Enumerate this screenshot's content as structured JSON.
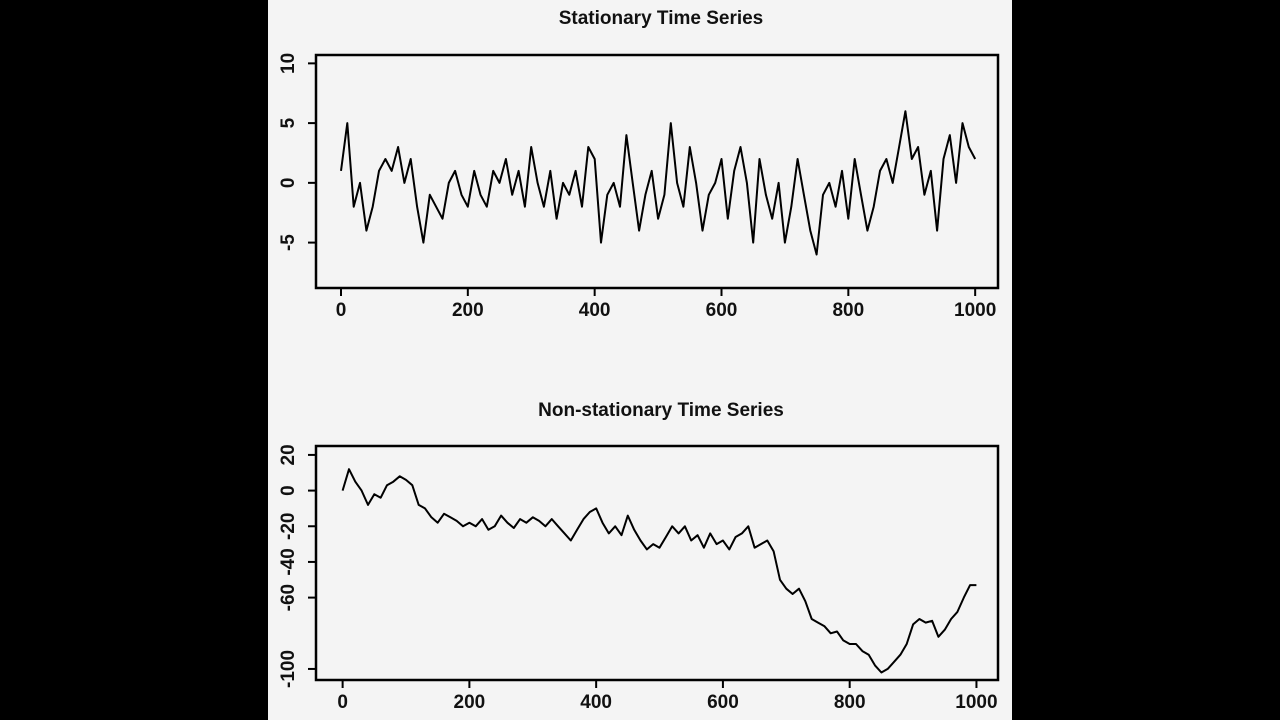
{
  "chart_data": [
    {
      "type": "line",
      "title": "Stationary Time Series",
      "color": "#000000",
      "x": [
        0,
        10,
        20,
        30,
        40,
        50,
        60,
        70,
        80,
        90,
        100,
        110,
        120,
        130,
        140,
        150,
        160,
        170,
        180,
        190,
        200,
        210,
        220,
        230,
        240,
        250,
        260,
        270,
        280,
        290,
        300,
        310,
        320,
        330,
        340,
        350,
        360,
        370,
        380,
        390,
        400,
        410,
        420,
        430,
        440,
        450,
        460,
        470,
        480,
        490,
        500,
        510,
        520,
        530,
        540,
        550,
        560,
        570,
        580,
        590,
        600,
        610,
        620,
        630,
        640,
        650,
        660,
        670,
        680,
        690,
        700,
        710,
        720,
        730,
        740,
        750,
        760,
        770,
        780,
        790,
        800,
        810,
        820,
        830,
        840,
        850,
        860,
        870,
        880,
        890,
        900,
        910,
        920,
        930,
        940,
        950,
        960,
        970,
        980,
        990,
        1000
      ],
      "values": [
        1,
        5,
        -2,
        0,
        -4,
        -2,
        1,
        2,
        1,
        3,
        0,
        2,
        -2,
        -5,
        -1,
        -2,
        -3,
        0,
        1,
        -1,
        -2,
        1,
        -1,
        -2,
        1,
        0,
        2,
        -1,
        1,
        -2,
        3,
        0,
        -2,
        1,
        -3,
        0,
        -1,
        1,
        -2,
        3,
        2,
        -5,
        -1,
        0,
        -2,
        4,
        0,
        -4,
        -1,
        1,
        -3,
        -1,
        5,
        0,
        -2,
        3,
        0,
        -4,
        -1,
        0,
        2,
        -3,
        1,
        3,
        0,
        -5,
        2,
        -1,
        -3,
        0,
        -5,
        -2,
        2,
        -1,
        -4,
        -6,
        -1,
        0,
        -2,
        1,
        -3,
        2,
        -1,
        -4,
        -2,
        1,
        2,
        0,
        3,
        6,
        2,
        3,
        -1,
        1,
        -4,
        2,
        4,
        0,
        5,
        3,
        2
      ],
      "xlim": [
        -39.4,
        1036
      ],
      "xticks": [
        0,
        200,
        400,
        600,
        800,
        1000
      ],
      "ylim": [
        -8.8,
        10.7
      ],
      "yticks": [
        -5,
        0,
        5,
        10
      ]
    },
    {
      "type": "line",
      "title": "Non-stationary Time Series",
      "color": "#000000",
      "x": [
        0,
        10,
        20,
        30,
        40,
        50,
        60,
        70,
        80,
        90,
        100,
        110,
        120,
        130,
        140,
        150,
        160,
        170,
        180,
        190,
        200,
        210,
        220,
        230,
        240,
        250,
        260,
        270,
        280,
        290,
        300,
        310,
        320,
        330,
        340,
        350,
        360,
        370,
        380,
        390,
        400,
        410,
        420,
        430,
        440,
        450,
        460,
        470,
        480,
        490,
        500,
        510,
        520,
        530,
        540,
        550,
        560,
        570,
        580,
        590,
        600,
        610,
        620,
        630,
        640,
        650,
        660,
        670,
        680,
        690,
        700,
        710,
        720,
        730,
        740,
        750,
        760,
        770,
        780,
        790,
        800,
        810,
        820,
        830,
        840,
        850,
        860,
        870,
        880,
        890,
        900,
        910,
        920,
        930,
        940,
        950,
        960,
        970,
        980,
        990,
        1000
      ],
      "values": [
        0,
        12,
        5,
        0,
        -8,
        -2,
        -4,
        3,
        5,
        8,
        6,
        3,
        -8,
        -10,
        -15,
        -18,
        -13,
        -15,
        -17,
        -20,
        -18,
        -20,
        -16,
        -22,
        -20,
        -14,
        -18,
        -21,
        -16,
        -18,
        -15,
        -17,
        -20,
        -16,
        -20,
        -24,
        -28,
        -22,
        -16,
        -12,
        -10,
        -18,
        -24,
        -20,
        -25,
        -14,
        -22,
        -28,
        -33,
        -30,
        -32,
        -26,
        -20,
        -24,
        -20,
        -28,
        -25,
        -32,
        -24,
        -30,
        -28,
        -33,
        -26,
        -24,
        -20,
        -32,
        -30,
        -28,
        -34,
        -50,
        -55,
        -58,
        -55,
        -62,
        -72,
        -74,
        -76,
        -80,
        -79,
        -84,
        -86,
        -86,
        -90,
        -92,
        -98,
        -102,
        -100,
        -96,
        -92,
        -86,
        -75,
        -72,
        -74,
        -73,
        -82,
        -78,
        -72,
        -68,
        -60,
        -53,
        -53
      ],
      "xlim": [
        -42,
        1034
      ],
      "xticks": [
        0,
        200,
        400,
        600,
        800,
        1000
      ],
      "ylim": [
        -106.2,
        25
      ],
      "yticks": [
        -100,
        -60,
        -40,
        -20,
        0,
        20
      ]
    }
  ]
}
